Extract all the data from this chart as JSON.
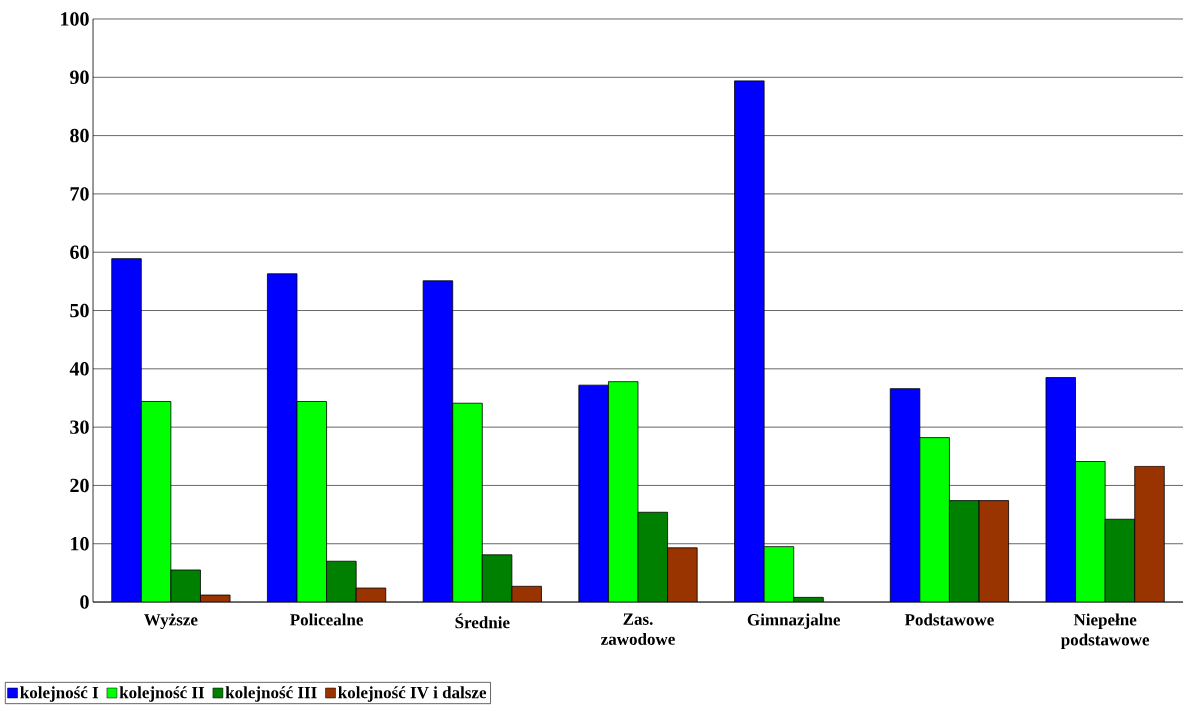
{
  "chart_data": {
    "type": "bar",
    "categories": [
      "Wyższe",
      "Policealne",
      "Średnie",
      "Zas. zawodowe",
      "Gimnazjalne",
      "Podstawowe",
      "Niepełne podstawowe"
    ],
    "series": [
      {
        "name": "kolejność I",
        "color": "#0000ff",
        "values": [
          58.9,
          56.3,
          55.1,
          37.2,
          89.4,
          36.6,
          38.5
        ]
      },
      {
        "name": "kolejność II",
        "color": "#00ff00",
        "values": [
          34.4,
          34.4,
          34.1,
          37.8,
          9.5,
          28.2,
          24.1
        ]
      },
      {
        "name": "kolejność III",
        "color": "#008000",
        "values": [
          5.5,
          7.0,
          8.1,
          15.4,
          0.8,
          17.4,
          14.2
        ]
      },
      {
        "name": "kolejność IV i dalsze",
        "color": "#993300",
        "values": [
          1.2,
          2.4,
          2.7,
          9.3,
          null,
          17.4,
          23.3
        ]
      }
    ],
    "ylim": [
      0,
      100
    ],
    "yticks": [
      0,
      10,
      20,
      30,
      40,
      50,
      60,
      70,
      80,
      90,
      100
    ],
    "grid": "y",
    "legend": "bottom left"
  }
}
